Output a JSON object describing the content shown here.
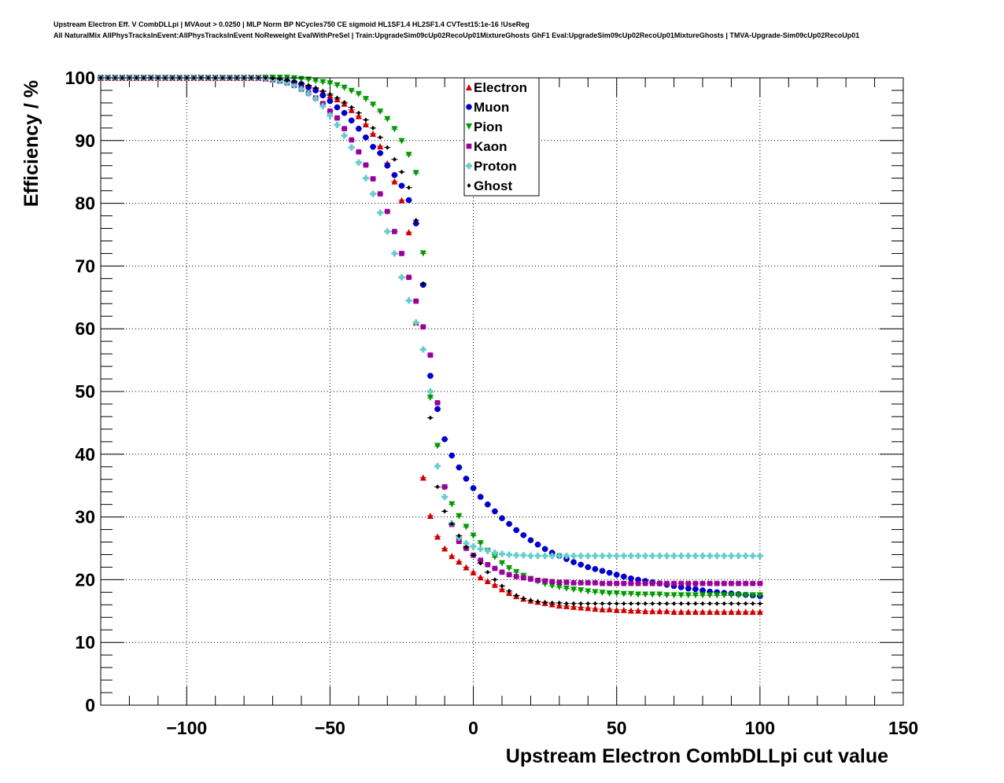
{
  "titles": {
    "line1": "Upstream Electron Eff. V CombDLLpi | MVAout > 0.0250 | MLP Norm BP NCycles750 CE sigmoid HL1SF1.4 HL2SF1.4 CVTest15:1e-16 !UseReg",
    "line2": "All NaturalMix AllPhysTracksInEvent:AllPhysTracksInEvent NoReweight EvalWithPreSel | Train:UpgradeSim09cUp02RecoUp01MixtureGhosts GhF1 Eval:UpgradeSim09cUp02RecoUp01MixtureGhosts | TMVA-Upgrade-Sim09cUp02RecoUp01"
  },
  "chart_data": {
    "type": "scatter",
    "xlabel": "Upstream Electron CombDLLpi cut value",
    "ylabel": "Efficiency / %",
    "xlim": [
      -130,
      150
    ],
    "ylim": [
      0,
      100
    ],
    "x_ticks": [
      -100,
      -50,
      0,
      50,
      100,
      150
    ],
    "x_tick_labels": [
      "−100",
      "−50",
      "0",
      "50",
      "100",
      "150"
    ],
    "y_ticks": [
      0,
      10,
      20,
      30,
      40,
      50,
      60,
      70,
      80,
      90,
      100
    ],
    "y_tick_labels": [
      "0",
      "10",
      "20",
      "30",
      "40",
      "50",
      "60",
      "70",
      "80",
      "90",
      "100"
    ],
    "grid": true,
    "legend_position": "top-center",
    "x_start": -130,
    "x_step": 2.5,
    "series": [
      {
        "name": "Electron",
        "color": "#cc0000",
        "marker": "triangle-up",
        "values": [
          100.0,
          100.0,
          100.0,
          100.0,
          100.0,
          100.0,
          100.0,
          100.0,
          100.0,
          100.0,
          100.0,
          100.0,
          100.0,
          100.0,
          100.0,
          100.0,
          100.0,
          100.0,
          100.0,
          100.0,
          100.0,
          100.0,
          100.0,
          99.9,
          99.8,
          99.7,
          99.6,
          99.3,
          99.0,
          98.7,
          98.3,
          97.8,
          97.2,
          96.6,
          95.9,
          94.9,
          93.9,
          92.6,
          91.1,
          89.1,
          86.4,
          83.5,
          80.5,
          75.4,
          61.0,
          36.3,
          30.2,
          26.9,
          25.0,
          23.8,
          22.9,
          22.0,
          21.2,
          20.4,
          19.8,
          19.2,
          18.5,
          17.9,
          17.4,
          17.0,
          16.7,
          16.5,
          16.3,
          16.1,
          15.9,
          15.8,
          15.7,
          15.6,
          15.5,
          15.4,
          15.3,
          15.3,
          15.2,
          15.2,
          15.1,
          15.1,
          15.0,
          15.0,
          15.0,
          15.0,
          14.9,
          14.9,
          14.9,
          14.9,
          14.9,
          14.9,
          14.9,
          14.9,
          14.9,
          14.9,
          14.9,
          14.9,
          14.9
        ]
      },
      {
        "name": "Muon",
        "color": "#0000cc",
        "marker": "circle",
        "values": [
          100.0,
          100.0,
          100.0,
          100.0,
          100.0,
          100.0,
          100.0,
          100.0,
          100.0,
          100.0,
          100.0,
          100.0,
          100.0,
          100.0,
          100.0,
          100.0,
          100.0,
          100.0,
          100.0,
          100.0,
          100.0,
          100.0,
          100.0,
          100.0,
          99.9,
          99.7,
          99.5,
          99.3,
          99.0,
          98.5,
          98.0,
          97.2,
          96.3,
          95.3,
          94.4,
          93.2,
          91.9,
          90.5,
          89.0,
          88.0,
          86.0,
          84.5,
          82.8,
          80.5,
          76.8,
          67.0,
          52.5,
          47.2,
          42.4,
          39.8,
          37.9,
          36.1,
          34.6,
          33.2,
          32.0,
          30.9,
          29.8,
          28.9,
          27.9,
          27.1,
          26.3,
          25.6,
          24.9,
          24.3,
          23.8,
          23.3,
          22.8,
          22.4,
          22.0,
          21.7,
          21.4,
          21.1,
          20.8,
          20.5,
          20.2,
          20.0,
          19.8,
          19.6,
          19.4,
          19.2,
          19.0,
          18.8,
          18.6,
          18.5,
          18.3,
          18.1,
          18.0,
          17.9,
          17.8,
          17.7,
          17.6,
          17.5,
          17.4
        ]
      },
      {
        "name": "Pion",
        "color": "#009900",
        "marker": "triangle-down",
        "values": [
          100.0,
          100.0,
          100.0,
          100.0,
          100.0,
          100.0,
          100.0,
          100.0,
          100.0,
          100.0,
          100.0,
          100.0,
          100.0,
          100.0,
          100.0,
          100.0,
          100.0,
          100.0,
          100.0,
          100.0,
          100.0,
          100.0,
          100.0,
          100.0,
          100.0,
          100.0,
          100.0,
          99.9,
          99.8,
          99.7,
          99.5,
          99.3,
          99.1,
          98.8,
          98.4,
          97.9,
          97.4,
          96.6,
          95.7,
          94.6,
          93.4,
          91.8,
          89.9,
          87.7,
          84.8,
          72.0,
          49.0,
          41.3,
          34.7,
          32.0,
          30.1,
          28.4,
          27.0,
          25.8,
          24.6,
          23.6,
          22.6,
          21.8,
          21.2,
          20.6,
          20.1,
          19.7,
          19.3,
          19.0,
          18.8,
          18.6,
          18.4,
          18.3,
          18.1,
          18.0,
          17.9,
          17.8,
          17.8,
          17.7,
          17.7,
          17.6,
          17.6,
          17.6,
          17.6,
          17.5,
          17.5,
          17.5,
          17.5,
          17.5,
          17.5,
          17.5,
          17.5,
          17.5,
          17.5,
          17.5,
          17.5,
          17.5,
          17.5
        ]
      },
      {
        "name": "Kaon",
        "color": "#990099",
        "marker": "square",
        "values": [
          100.0,
          100.0,
          100.0,
          100.0,
          100.0,
          100.0,
          100.0,
          100.0,
          100.0,
          100.0,
          100.0,
          100.0,
          100.0,
          100.0,
          100.0,
          100.0,
          100.0,
          100.0,
          100.0,
          100.0,
          100.0,
          100.0,
          100.0,
          99.9,
          99.7,
          99.5,
          99.2,
          98.8,
          98.2,
          97.6,
          96.8,
          95.9,
          94.7,
          93.6,
          91.9,
          90.1,
          88.2,
          86.1,
          83.9,
          81.5,
          78.7,
          75.5,
          72.0,
          68.2,
          64.4,
          60.3,
          55.8,
          48.2,
          34.8,
          28.8,
          26.1,
          25.0,
          23.9,
          23.1,
          22.4,
          21.8,
          21.2,
          20.8,
          20.5,
          20.3,
          20.1,
          19.9,
          19.8,
          19.7,
          19.6,
          19.6,
          19.5,
          19.5,
          19.5,
          19.5,
          19.4,
          19.4,
          19.4,
          19.4,
          19.4,
          19.4,
          19.4,
          19.4,
          19.4,
          19.4,
          19.4,
          19.4,
          19.4,
          19.4,
          19.4,
          19.4,
          19.4,
          19.4,
          19.4,
          19.4,
          19.4,
          19.4,
          19.4
        ]
      },
      {
        "name": "Proton",
        "color": "#66cccc",
        "marker": "cross",
        "values": [
          100.0,
          100.0,
          100.0,
          100.0,
          100.0,
          100.0,
          100.0,
          100.0,
          100.0,
          100.0,
          100.0,
          100.0,
          100.0,
          100.0,
          100.0,
          100.0,
          100.0,
          100.0,
          100.0,
          100.0,
          100.0,
          100.0,
          100.0,
          99.9,
          99.7,
          99.5,
          99.2,
          98.8,
          98.2,
          97.5,
          96.7,
          95.5,
          94.0,
          92.5,
          90.8,
          88.9,
          86.5,
          84.0,
          81.5,
          78.5,
          75.5,
          72.0,
          68.2,
          64.5,
          61.0,
          56.7,
          50.0,
          38.1,
          33.2,
          29.0,
          26.7,
          25.8,
          25.3,
          24.9,
          24.6,
          24.3,
          24.1,
          24.0,
          23.9,
          23.9,
          23.8,
          23.8,
          23.8,
          23.8,
          23.8,
          23.8,
          23.8,
          23.8,
          23.8,
          23.8,
          23.8,
          23.8,
          23.8,
          23.8,
          23.8,
          23.8,
          23.8,
          23.8,
          23.8,
          23.8,
          23.8,
          23.8,
          23.8,
          23.8,
          23.8,
          23.8,
          23.8,
          23.8,
          23.8,
          23.8,
          23.8,
          23.8,
          23.8
        ]
      },
      {
        "name": "Ghost",
        "color": "#000000",
        "marker": "diamond",
        "values": [
          100.0,
          100.0,
          100.0,
          100.0,
          100.0,
          100.0,
          100.0,
          100.0,
          100.0,
          100.0,
          100.0,
          100.0,
          100.0,
          100.0,
          100.0,
          100.0,
          100.0,
          100.0,
          100.0,
          100.0,
          100.0,
          100.0,
          100.0,
          100.0,
          99.9,
          99.8,
          99.6,
          99.4,
          99.1,
          98.8,
          98.4,
          97.9,
          97.4,
          96.8,
          96.1,
          95.3,
          94.4,
          93.3,
          92.0,
          90.5,
          88.9,
          87.0,
          85.0,
          82.5,
          77.3,
          67.2,
          45.8,
          34.8,
          30.9,
          28.9,
          27.0,
          25.2,
          23.9,
          22.6,
          21.2,
          20.0,
          19.0,
          18.2,
          17.5,
          17.0,
          16.7,
          16.5,
          16.4,
          16.3,
          16.3,
          16.2,
          16.2,
          16.2,
          16.2,
          16.2,
          16.2,
          16.2,
          16.2,
          16.2,
          16.2,
          16.2,
          16.2,
          16.2,
          16.2,
          16.2,
          16.2,
          16.2,
          16.2,
          16.2,
          16.2,
          16.2,
          16.2,
          16.2,
          16.2,
          16.2,
          16.2,
          16.2,
          16.2
        ]
      }
    ]
  }
}
